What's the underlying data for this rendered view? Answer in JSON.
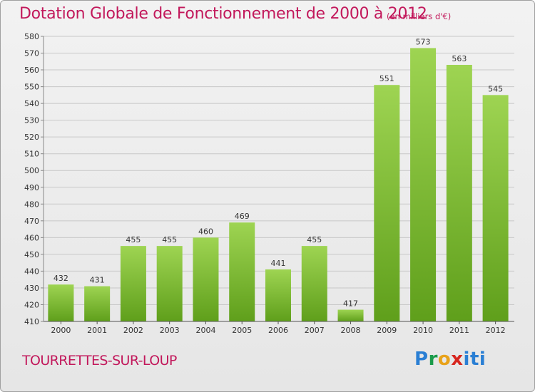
{
  "header": {
    "title": "Dotation Globale de Fonctionnement de 2000 à 2012",
    "unit": "(en milliers d'€)"
  },
  "footer": {
    "commune": "TOURRETTES-SUR-LOUP",
    "logo": [
      "P",
      "r",
      "o",
      "x",
      "i",
      "t",
      "i"
    ],
    "logo_colors": [
      "#2a7fd4",
      "#1a9b4a",
      "#e8a21a",
      "#d7261f",
      "#2a7fd4",
      "#2a7fd4",
      "#2a7fd4"
    ]
  },
  "colors": {
    "bar_top": "#9ed452",
    "bar_bottom": "#5f9f1b",
    "grid": "#c8c8c8",
    "title": "#c2185b"
  },
  "chart_data": {
    "type": "bar",
    "categories": [
      "2000",
      "2001",
      "2002",
      "2003",
      "2004",
      "2005",
      "2006",
      "2007",
      "2008",
      "2009",
      "2010",
      "2011",
      "2012"
    ],
    "values": [
      432,
      431,
      455,
      455,
      460,
      469,
      441,
      455,
      417,
      551,
      573,
      563,
      545
    ],
    "title": "Dotation Globale de Fonctionnement de 2000 à 2012",
    "ylim": [
      410,
      580
    ],
    "yticks": [
      410,
      420,
      430,
      440,
      450,
      460,
      470,
      480,
      490,
      500,
      510,
      520,
      530,
      540,
      550,
      560,
      570,
      580
    ],
    "grid": true
  }
}
